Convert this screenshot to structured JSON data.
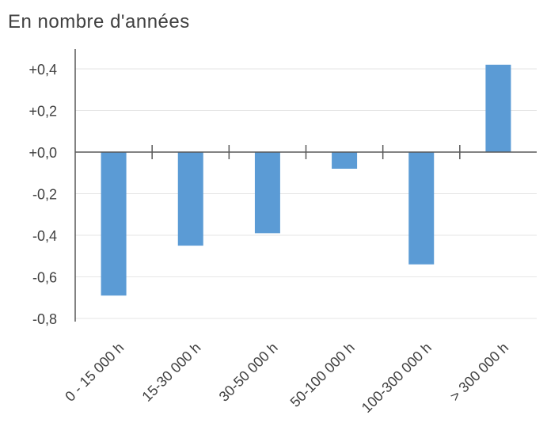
{
  "chart_data": {
    "type": "bar",
    "title": "En nombre d'années",
    "categories": [
      "0 - 15 000 h",
      "15-30 000 h",
      "30-50 000 h",
      "50-100 000 h",
      "100-300 000 h",
      "> 300 000 h"
    ],
    "values": [
      -0.69,
      -0.45,
      -0.39,
      -0.08,
      -0.54,
      0.42
    ],
    "ylim": [
      -0.8,
      0.5
    ],
    "yticks": [
      0.4,
      0.2,
      0.0,
      -0.2,
      -0.4,
      -0.6,
      -0.8
    ],
    "ytick_labels": [
      "+0,4",
      "+0,2",
      "+0,0",
      "-0,2",
      "-0,4",
      "-0,6",
      "-0,8"
    ],
    "xlabel": "",
    "ylabel": "",
    "grid": true,
    "bar_color": "#5B9BD5",
    "grid_color": "#E6E6E6",
    "axis_color": "#595959"
  }
}
